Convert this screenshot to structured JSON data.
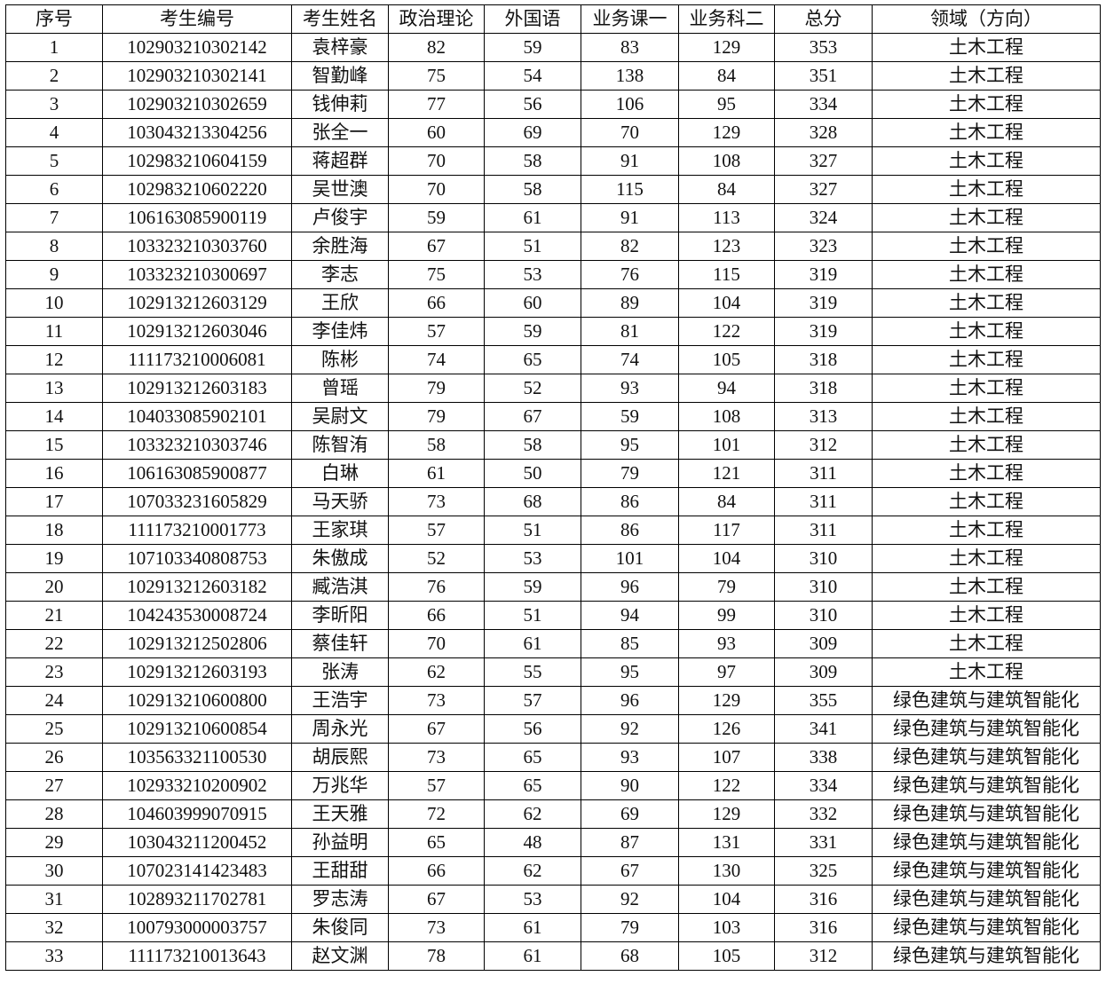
{
  "headers": [
    "序号",
    "考生编号",
    "考生姓名",
    "政治理论",
    "外国语",
    "业务课一",
    "业务科二",
    "总分",
    "领域（方向）"
  ],
  "rows": [
    [
      "1",
      "102903210302142",
      "袁梓豪",
      "82",
      "59",
      "83",
      "129",
      "353",
      "土木工程"
    ],
    [
      "2",
      "102903210302141",
      "智勤峰",
      "75",
      "54",
      "138",
      "84",
      "351",
      "土木工程"
    ],
    [
      "3",
      "102903210302659",
      "钱伸莉",
      "77",
      "56",
      "106",
      "95",
      "334",
      "土木工程"
    ],
    [
      "4",
      "103043213304256",
      "张全一",
      "60",
      "69",
      "70",
      "129",
      "328",
      "土木工程"
    ],
    [
      "5",
      "102983210604159",
      "蒋超群",
      "70",
      "58",
      "91",
      "108",
      "327",
      "土木工程"
    ],
    [
      "6",
      "102983210602220",
      "吴世澳",
      "70",
      "58",
      "115",
      "84",
      "327",
      "土木工程"
    ],
    [
      "7",
      "106163085900119",
      "卢俊宇",
      "59",
      "61",
      "91",
      "113",
      "324",
      "土木工程"
    ],
    [
      "8",
      "103323210303760",
      "余胜海",
      "67",
      "51",
      "82",
      "123",
      "323",
      "土木工程"
    ],
    [
      "9",
      "103323210300697",
      "李志",
      "75",
      "53",
      "76",
      "115",
      "319",
      "土木工程"
    ],
    [
      "10",
      "102913212603129",
      "王欣",
      "66",
      "60",
      "89",
      "104",
      "319",
      "土木工程"
    ],
    [
      "11",
      "102913212603046",
      "李佳炜",
      "57",
      "59",
      "81",
      "122",
      "319",
      "土木工程"
    ],
    [
      "12",
      "111173210006081",
      "陈彬",
      "74",
      "65",
      "74",
      "105",
      "318",
      "土木工程"
    ],
    [
      "13",
      "102913212603183",
      "曾瑶",
      "79",
      "52",
      "93",
      "94",
      "318",
      "土木工程"
    ],
    [
      "14",
      "104033085902101",
      "吴尉文",
      "79",
      "67",
      "59",
      "108",
      "313",
      "土木工程"
    ],
    [
      "15",
      "103323210303746",
      "陈智洧",
      "58",
      "58",
      "95",
      "101",
      "312",
      "土木工程"
    ],
    [
      "16",
      "106163085900877",
      "白琳",
      "61",
      "50",
      "79",
      "121",
      "311",
      "土木工程"
    ],
    [
      "17",
      "107033231605829",
      "马天骄",
      "73",
      "68",
      "86",
      "84",
      "311",
      "土木工程"
    ],
    [
      "18",
      "111173210001773",
      "王家琪",
      "57",
      "51",
      "86",
      "117",
      "311",
      "土木工程"
    ],
    [
      "19",
      "107103340808753",
      "朱傲成",
      "52",
      "53",
      "101",
      "104",
      "310",
      "土木工程"
    ],
    [
      "20",
      "102913212603182",
      "臧浩淇",
      "76",
      "59",
      "96",
      "79",
      "310",
      "土木工程"
    ],
    [
      "21",
      "104243530008724",
      "李昕阳",
      "66",
      "51",
      "94",
      "99",
      "310",
      "土木工程"
    ],
    [
      "22",
      "102913212502806",
      "蔡佳轩",
      "70",
      "61",
      "85",
      "93",
      "309",
      "土木工程"
    ],
    [
      "23",
      "102913212603193",
      "张涛",
      "62",
      "55",
      "95",
      "97",
      "309",
      "土木工程"
    ],
    [
      "24",
      "102913210600800",
      "王浩宇",
      "73",
      "57",
      "96",
      "129",
      "355",
      "绿色建筑与建筑智能化"
    ],
    [
      "25",
      "102913210600854",
      "周永光",
      "67",
      "56",
      "92",
      "126",
      "341",
      "绿色建筑与建筑智能化"
    ],
    [
      "26",
      "103563321100530",
      "胡辰熙",
      "73",
      "65",
      "93",
      "107",
      "338",
      "绿色建筑与建筑智能化"
    ],
    [
      "27",
      "102933210200902",
      "万兆华",
      "57",
      "65",
      "90",
      "122",
      "334",
      "绿色建筑与建筑智能化"
    ],
    [
      "28",
      "104603999070915",
      "王天雅",
      "72",
      "62",
      "69",
      "129",
      "332",
      "绿色建筑与建筑智能化"
    ],
    [
      "29",
      "103043211200452",
      "孙益明",
      "65",
      "48",
      "87",
      "131",
      "331",
      "绿色建筑与建筑智能化"
    ],
    [
      "30",
      "107023141423483",
      "王甜甜",
      "66",
      "62",
      "67",
      "130",
      "325",
      "绿色建筑与建筑智能化"
    ],
    [
      "31",
      "102893211702781",
      "罗志涛",
      "67",
      "53",
      "92",
      "104",
      "316",
      "绿色建筑与建筑智能化"
    ],
    [
      "32",
      "100793000003757",
      "朱俊同",
      "73",
      "61",
      "79",
      "103",
      "316",
      "绿色建筑与建筑智能化"
    ],
    [
      "33",
      "111173210013643",
      "赵文渊",
      "78",
      "61",
      "68",
      "105",
      "312",
      "绿色建筑与建筑智能化"
    ]
  ]
}
